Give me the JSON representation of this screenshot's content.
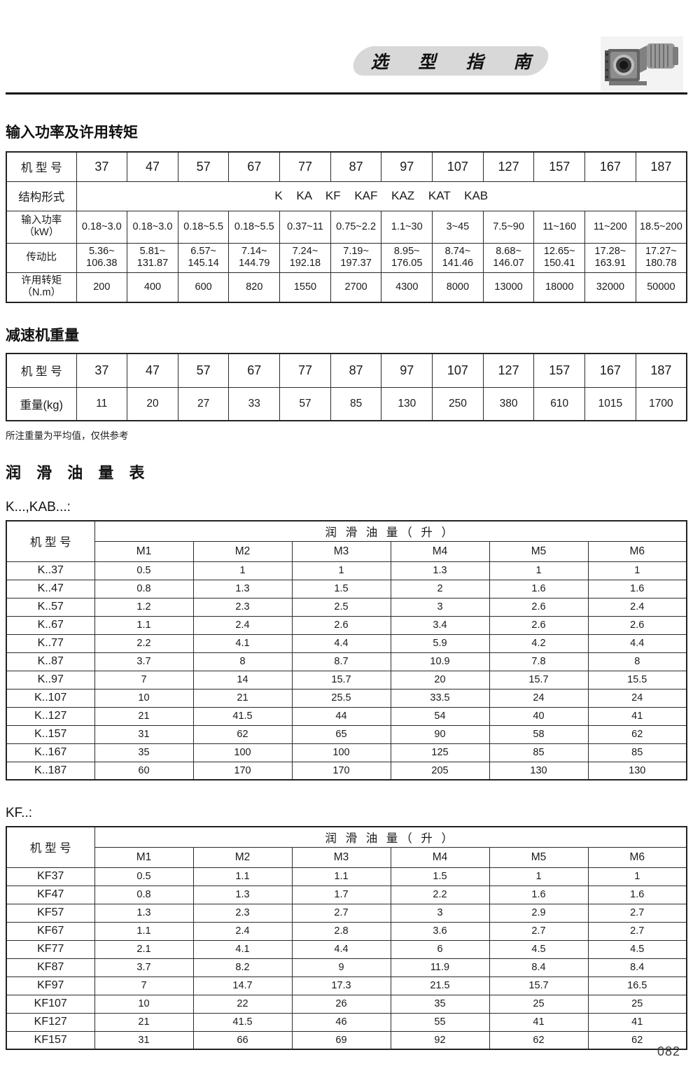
{
  "header": {
    "banner_title": "选 型 指 南"
  },
  "power_torque_section": {
    "title": "输入功率及许用转矩",
    "model_row_label": "机 型 号",
    "models": [
      "37",
      "47",
      "57",
      "67",
      "77",
      "87",
      "97",
      "107",
      "127",
      "157",
      "167",
      "187"
    ],
    "structure_row_label": "结构形式",
    "structure_value": "K KA KF KAF KAZ KAT KAB",
    "power_row_label": "输入功率\n（kW）",
    "power_values": [
      "0.18~3.0",
      "0.18~3.0",
      "0.18~5.5",
      "0.18~5.5",
      "0.37~11",
      "0.75~2.2",
      "1.1~30",
      "3~45",
      "7.5~90",
      "11~160",
      "11~200",
      "18.5~200"
    ],
    "ratio_row_label": "传动比",
    "ratio_values": [
      "5.36~\n106.38",
      "5.81~\n131.87",
      "6.57~\n145.14",
      "7.14~\n144.79",
      "7.24~\n192.18",
      "7.19~\n197.37",
      "8.95~\n176.05",
      "8.74~\n141.46",
      "8.68~\n146.07",
      "12.65~\n150.41",
      "17.28~\n163.91",
      "17.27~\n180.78"
    ],
    "torque_row_label": "许用转矩\n（N.m）",
    "torque_values": [
      "200",
      "400",
      "600",
      "820",
      "1550",
      "2700",
      "4300",
      "8000",
      "13000",
      "18000",
      "32000",
      "50000"
    ]
  },
  "weight_section": {
    "title": "减速机重量",
    "model_row_label": "机 型 号",
    "models": [
      "37",
      "47",
      "57",
      "67",
      "77",
      "87",
      "97",
      "107",
      "127",
      "157",
      "167",
      "187"
    ],
    "weight_row_label": "重量(kg)",
    "weights": [
      "11",
      "20",
      "27",
      "33",
      "57",
      "85",
      "130",
      "250",
      "380",
      "610",
      "1015",
      "1700"
    ],
    "note": "所注重量为平均值，仅供参考"
  },
  "lubricant_section": {
    "title": "润 滑 油 量 表",
    "k_table": {
      "label": "K...,KAB...:",
      "model_header": "机 型 号",
      "oil_header": "润 滑 油 量（ 升 ）",
      "rows": [
        [
          "K..37",
          "0.5",
          "1",
          "1",
          "1.3",
          "1",
          "1"
        ],
        [
          "K..47",
          "0.8",
          "1.3",
          "1.5",
          "2",
          "1.6",
          "1.6"
        ],
        [
          "K..57",
          "1.2",
          "2.3",
          "2.5",
          "3",
          "2.6",
          "2.4"
        ],
        [
          "K..67",
          "1.1",
          "2.4",
          "2.6",
          "3.4",
          "2.6",
          "2.6"
        ],
        [
          "K..77",
          "2.2",
          "4.1",
          "4.4",
          "5.9",
          "4.2",
          "4.4"
        ],
        [
          "K..87",
          "3.7",
          "8",
          "8.7",
          "10.9",
          "7.8",
          "8"
        ],
        [
          "K..97",
          "7",
          "14",
          "15.7",
          "20",
          "15.7",
          "15.5"
        ],
        [
          "K..107",
          "10",
          "21",
          "25.5",
          "33.5",
          "24",
          "24"
        ],
        [
          "K..127",
          "21",
          "41.5",
          "44",
          "54",
          "40",
          "41"
        ],
        [
          "K..157",
          "31",
          "62",
          "65",
          "90",
          "58",
          "62"
        ],
        [
          "K..167",
          "35",
          "100",
          "100",
          "125",
          "85",
          "85"
        ],
        [
          "K..187",
          "60",
          "170",
          "170",
          "205",
          "130",
          "130"
        ]
      ]
    },
    "kf_table": {
      "label": "KF..:",
      "model_header": "机 型 号",
      "oil_header": "润 滑 油 量（ 升 ）",
      "rows": [
        [
          "KF37",
          "0.5",
          "1.1",
          "1.1",
          "1.5",
          "1",
          "1"
        ],
        [
          "KF47",
          "0.8",
          "1.3",
          "1.7",
          "2.2",
          "1.6",
          "1.6"
        ],
        [
          "KF57",
          "1.3",
          "2.3",
          "2.7",
          "3",
          "2.9",
          "2.7"
        ],
        [
          "KF67",
          "1.1",
          "2.4",
          "2.8",
          "3.6",
          "2.7",
          "2.7"
        ],
        [
          "KF77",
          "2.1",
          "4.1",
          "4.4",
          "6",
          "4.5",
          "4.5"
        ],
        [
          "KF87",
          "3.7",
          "8.2",
          "9",
          "11.9",
          "8.4",
          "8.4"
        ],
        [
          "KF97",
          "7",
          "14.7",
          "17.3",
          "21.5",
          "15.7",
          "16.5"
        ],
        [
          "KF107",
          "10",
          "22",
          "26",
          "35",
          "25",
          "25"
        ],
        [
          "KF127",
          "21",
          "41.5",
          "46",
          "55",
          "41",
          "41"
        ],
        [
          "KF157",
          "31",
          "66",
          "69",
          "92",
          "62",
          "62"
        ]
      ]
    },
    "m_columns": [
      "M1",
      "M2",
      "M3",
      "M4",
      "M5",
      "M6"
    ]
  },
  "footer": {
    "page_number": "082"
  }
}
